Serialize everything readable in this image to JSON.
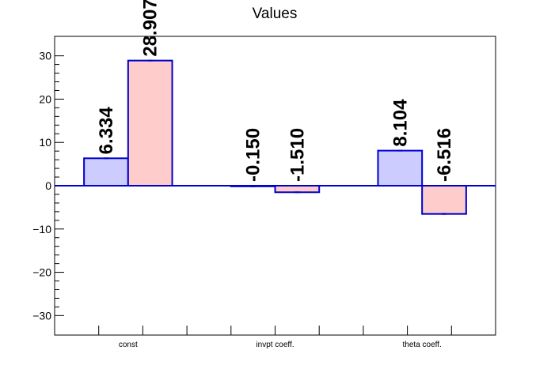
{
  "chart_data": {
    "type": "bar",
    "title": "Values",
    "xlabel": "",
    "ylabel": "",
    "categories": [
      "const",
      "invpt coeff.",
      "theta coeff."
    ],
    "ylim": [
      -34.5,
      34.5
    ],
    "yticks": [
      -30,
      -20,
      -10,
      0,
      10,
      20,
      30
    ],
    "ytick_labels": [
      "−30",
      "−20",
      "−10",
      "0",
      "10",
      "20",
      "30"
    ],
    "grid": false,
    "series": [
      {
        "values": [
          6.334,
          -0.15,
          8.104
        ],
        "labels": [
          "6.334",
          "-0.150",
          "8.104"
        ],
        "fill": "#ccccff",
        "stroke": "#0000cc"
      },
      {
        "values": [
          28.907,
          -1.51,
          -6.516
        ],
        "labels": [
          "28.907",
          "-1.510",
          "-6.516"
        ],
        "fill": "#ffcccc",
        "stroke": "#0000cc"
      }
    ]
  }
}
